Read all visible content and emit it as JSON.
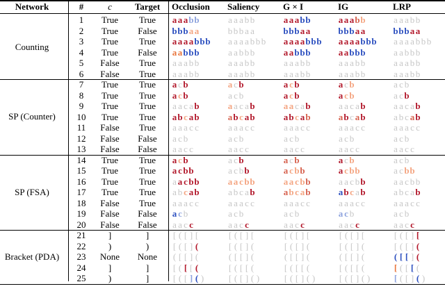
{
  "palette": {
    "R": "#b2182b",
    "r": "#d6604d",
    "p": "#f4a582",
    "o": "#e8743b",
    "g": "#c6c6c6",
    "B": "#2c4fbf",
    "b": "#8ea3de"
  },
  "table": {
    "header": [
      "Network",
      "#",
      "c",
      "Target",
      "Occlusion",
      "Saliency",
      "G × I",
      "IG",
      "LRP"
    ],
    "groups": [
      {
        "name": "Counting",
        "rows": [
          {
            "num": 1,
            "c": "True",
            "target": "True",
            "cells": [
              {
                "text": "aaabb",
                "colors": "RRRbb"
              },
              {
                "text": "aaabb",
                "colors": "ggggg"
              },
              {
                "text": "aaabb",
                "colors": "RRRBB"
              },
              {
                "text": "aaabb",
                "colors": "RRRrp"
              },
              {
                "text": "aaabb",
                "colors": "ggggg"
              }
            ]
          },
          {
            "num": 2,
            "c": "True",
            "target": "False",
            "cells": [
              {
                "text": "bbbaa",
                "colors": "BBBpp"
              },
              {
                "text": "bbbaa",
                "colors": "ggggg"
              },
              {
                "text": "bbbaa",
                "colors": "BBBRR"
              },
              {
                "text": "bbbaa",
                "colors": "BBBRR"
              },
              {
                "text": "bbbaa",
                "colors": "BBBRR"
              }
            ]
          },
          {
            "num": 3,
            "c": "True",
            "target": "True",
            "cells": [
              {
                "text": "aaaabbb",
                "colors": "RRRRBBB"
              },
              {
                "text": "aaaabbb",
                "colors": "ggggggg"
              },
              {
                "text": "aaaabbb",
                "colors": "RRRRBBB"
              },
              {
                "text": "aaaabbb",
                "colors": "RRRRBBB"
              },
              {
                "text": "aaaabbb",
                "colors": "ggggggg"
              }
            ]
          },
          {
            "num": 4,
            "c": "True",
            "target": "False",
            "cells": [
              {
                "text": "aabbb",
                "colors": "ooBBB"
              },
              {
                "text": "aabbb",
                "colors": "ggggg"
              },
              {
                "text": "aabbb",
                "colors": "RRBBB"
              },
              {
                "text": "aabbb",
                "colors": "RRBBB"
              },
              {
                "text": "aabbb",
                "colors": "ggggg"
              }
            ]
          },
          {
            "num": 5,
            "c": "False",
            "target": "True",
            "cells": [
              {
                "text": "aaabb",
                "colors": "ggggg"
              },
              {
                "text": "aaabb",
                "colors": "ggggg"
              },
              {
                "text": "aaabb",
                "colors": "ggggg"
              },
              {
                "text": "aaabb",
                "colors": "ggggg"
              },
              {
                "text": "aaabb",
                "colors": "ggggg"
              }
            ]
          },
          {
            "num": 6,
            "c": "False",
            "target": "True",
            "cells": [
              {
                "text": "aaabb",
                "colors": "ggggg"
              },
              {
                "text": "aaabb",
                "colors": "ggggg"
              },
              {
                "text": "aaabb",
                "colors": "ggggg"
              },
              {
                "text": "aaabb",
                "colors": "ggggg"
              },
              {
                "text": "aaabb",
                "colors": "ggggg"
              }
            ]
          }
        ]
      },
      {
        "name": "SP (Counter)",
        "rows": [
          {
            "num": 7,
            "c": "True",
            "target": "True",
            "cells": [
              {
                "text": "acb",
                "colors": "RgR"
              },
              {
                "text": "acb",
                "colors": "pgR"
              },
              {
                "text": "acb",
                "colors": "RpR"
              },
              {
                "text": "acb",
                "colors": "Rgp"
              },
              {
                "text": "acb",
                "colors": "ggg"
              }
            ]
          },
          {
            "num": 8,
            "c": "True",
            "target": "True",
            "cells": [
              {
                "text": "acb",
                "colors": "RpR"
              },
              {
                "text": "acb",
                "colors": "ggg"
              },
              {
                "text": "acb",
                "colors": "RpR"
              },
              {
                "text": "acb",
                "colors": "Rpp"
              },
              {
                "text": "acb",
                "colors": "ggR"
              }
            ]
          },
          {
            "num": 9,
            "c": "True",
            "target": "True",
            "cells": [
              {
                "text": "aacab",
                "colors": "ggggR"
              },
              {
                "text": "aacab",
                "colors": "pgggR"
              },
              {
                "text": "aacab",
                "colors": "ppggR"
              },
              {
                "text": "aacab",
                "colors": "ggggR"
              },
              {
                "text": "aacab",
                "colors": "ggggR"
              }
            ]
          },
          {
            "num": 10,
            "c": "True",
            "target": "True",
            "cells": [
              {
                "text": "abcab",
                "colors": "RRpRR"
              },
              {
                "text": "abcab",
                "colors": "rRpRR"
              },
              {
                "text": "abcab",
                "colors": "RRpRr"
              },
              {
                "text": "abcab",
                "colors": "rRgrR"
              },
              {
                "text": "abcab",
                "colors": "gggrR"
              }
            ]
          },
          {
            "num": 11,
            "c": "False",
            "target": "True",
            "cells": [
              {
                "text": "aaacc",
                "colors": "ggggg"
              },
              {
                "text": "aaacc",
                "colors": "ggggg"
              },
              {
                "text": "aaacc",
                "colors": "ggggg"
              },
              {
                "text": "aaacc",
                "colors": "ggggg"
              },
              {
                "text": "aaacc",
                "colors": "ggggg"
              }
            ]
          },
          {
            "num": 12,
            "c": "False",
            "target": "False",
            "cells": [
              {
                "text": "acb",
                "colors": "ggg"
              },
              {
                "text": "acb",
                "colors": "ggg"
              },
              {
                "text": "acb",
                "colors": "ggg"
              },
              {
                "text": "acb",
                "colors": "ggg"
              },
              {
                "text": "acb",
                "colors": "ggg"
              }
            ]
          },
          {
            "num": 13,
            "c": "False",
            "target": "False",
            "cells": [
              {
                "text": "aacc",
                "colors": "gggg"
              },
              {
                "text": "aacc",
                "colors": "gggg"
              },
              {
                "text": "aacc",
                "colors": "gggg"
              },
              {
                "text": "aacc",
                "colors": "gggg"
              },
              {
                "text": "aacc",
                "colors": "gggg"
              }
            ]
          }
        ]
      },
      {
        "name": "SP (FSA)",
        "rows": [
          {
            "num": 14,
            "c": "True",
            "target": "True",
            "cells": [
              {
                "text": "acb",
                "colors": "RpR"
              },
              {
                "text": "acb",
                "colors": "ggR"
              },
              {
                "text": "acb",
                "colors": "rgr"
              },
              {
                "text": "acb",
                "colors": "Rgp"
              },
              {
                "text": "acb",
                "colors": "ggg"
              }
            ]
          },
          {
            "num": 15,
            "c": "True",
            "target": "True",
            "cells": [
              {
                "text": "acbb",
                "colors": "RRRR"
              },
              {
                "text": "acbb",
                "colors": "gggR"
              },
              {
                "text": "acbb",
                "colors": "rppr"
              },
              {
                "text": "acbb",
                "colors": "Rppp"
              },
              {
                "text": "acbb",
                "colors": "ggpp"
              }
            ]
          },
          {
            "num": 16,
            "c": "True",
            "target": "True",
            "cells": [
              {
                "text": "aacbb",
                "colors": "gRRRR"
              },
              {
                "text": "aacbb",
                "colors": "ppppp"
              },
              {
                "text": "aacbb",
                "colors": "ppppr"
              },
              {
                "text": "aacbb",
                "colors": "ggggR"
              },
              {
                "text": "aacbb",
                "colors": "ggggg"
              }
            ]
          },
          {
            "num": 17,
            "c": "True",
            "target": "True",
            "cells": [
              {
                "text": "abcab",
                "colors": "ggpRR"
              },
              {
                "text": "abcab",
                "colors": "ggggR"
              },
              {
                "text": "abcab",
                "colors": "rpppr"
              },
              {
                "text": "abcab",
                "colors": "BRpgR"
              },
              {
                "text": "abcab",
                "colors": "ggggR"
              }
            ]
          },
          {
            "num": 18,
            "c": "False",
            "target": "True",
            "cells": [
              {
                "text": "aaacc",
                "colors": "ggggg"
              },
              {
                "text": "aaacc",
                "colors": "ggggg"
              },
              {
                "text": "aaacc",
                "colors": "ggggg"
              },
              {
                "text": "aaacc",
                "colors": "ggggg"
              },
              {
                "text": "aaacc",
                "colors": "ggggg"
              }
            ]
          },
          {
            "num": 19,
            "c": "False",
            "target": "False",
            "cells": [
              {
                "text": "acb",
                "colors": "Bbg"
              },
              {
                "text": "acb",
                "colors": "ggg"
              },
              {
                "text": "acb",
                "colors": "ggg"
              },
              {
                "text": "acb",
                "colors": "bbg"
              },
              {
                "text": "acb",
                "colors": "ggg"
              }
            ]
          },
          {
            "num": 20,
            "c": "False",
            "target": "False",
            "cells": [
              {
                "text": "aacc",
                "colors": "gggR"
              },
              {
                "text": "aacc",
                "colors": "gggR"
              },
              {
                "text": "aacc",
                "colors": "gggR"
              },
              {
                "text": "aacc",
                "colors": "gggR"
              },
              {
                "text": "aacc",
                "colors": "gggR"
              }
            ]
          }
        ]
      },
      {
        "name": "Bracket (PDA)",
        "rows": [
          {
            "num": 21,
            "c": "]",
            "target": "]",
            "cells": [
              {
                "text": "[([][",
                "colors": "ggggg"
              },
              {
                "text": "[([][",
                "colors": "ggggg"
              },
              {
                "text": "[([][",
                "colors": "ggggg"
              },
              {
                "text": "[([][",
                "colors": "ggggg"
              },
              {
                "text": "[([][",
                "colors": "ggggR"
              }
            ]
          },
          {
            "num": 22,
            "c": ")",
            "target": ")",
            "cells": [
              {
                "text": "[([](",
                "colors": "ggggR"
              },
              {
                "text": "[([](",
                "colors": "ggggg"
              },
              {
                "text": "[([](",
                "colors": "ggggg"
              },
              {
                "text": "[([](",
                "colors": "ggggg"
              },
              {
                "text": "[([](",
                "colors": "ggggR"
              }
            ]
          },
          {
            "num": 23,
            "c": "None",
            "target": "None",
            "cells": [
              {
                "text": "([[](",
                "colors": "ggggg"
              },
              {
                "text": "([[](",
                "colors": "ggggg"
              },
              {
                "text": "([[](",
                "colors": "ggggg"
              },
              {
                "text": "([[](",
                "colors": "ggggg"
              },
              {
                "text": "([[](",
                "colors": "BBBgR"
              }
            ]
          },
          {
            "num": 24,
            "c": "]",
            "target": "]",
            "cells": [
              {
                "text": "[([[(",
                "colors": "ggRgR"
              },
              {
                "text": "[([[(",
                "colors": "ggggg"
              },
              {
                "text": "[([[(",
                "colors": "ggggg"
              },
              {
                "text": "[([[(",
                "colors": "ggggg"
              },
              {
                "text": "[([[(",
                "colors": "oggBg"
              }
            ]
          },
          {
            "num": 25,
            "c": ")",
            "target": "]",
            "cells": [
              {
                "text": "[([]()",
                "colors": "gggbBg"
              },
              {
                "text": "[([]()",
                "colors": "gggggg"
              },
              {
                "text": "[([]()",
                "colors": "gggggg"
              },
              {
                "text": "[([]()",
                "colors": "gggggg"
              },
              {
                "text": "[([]()",
                "colors": "bgggBg"
              }
            ]
          }
        ]
      }
    ]
  }
}
